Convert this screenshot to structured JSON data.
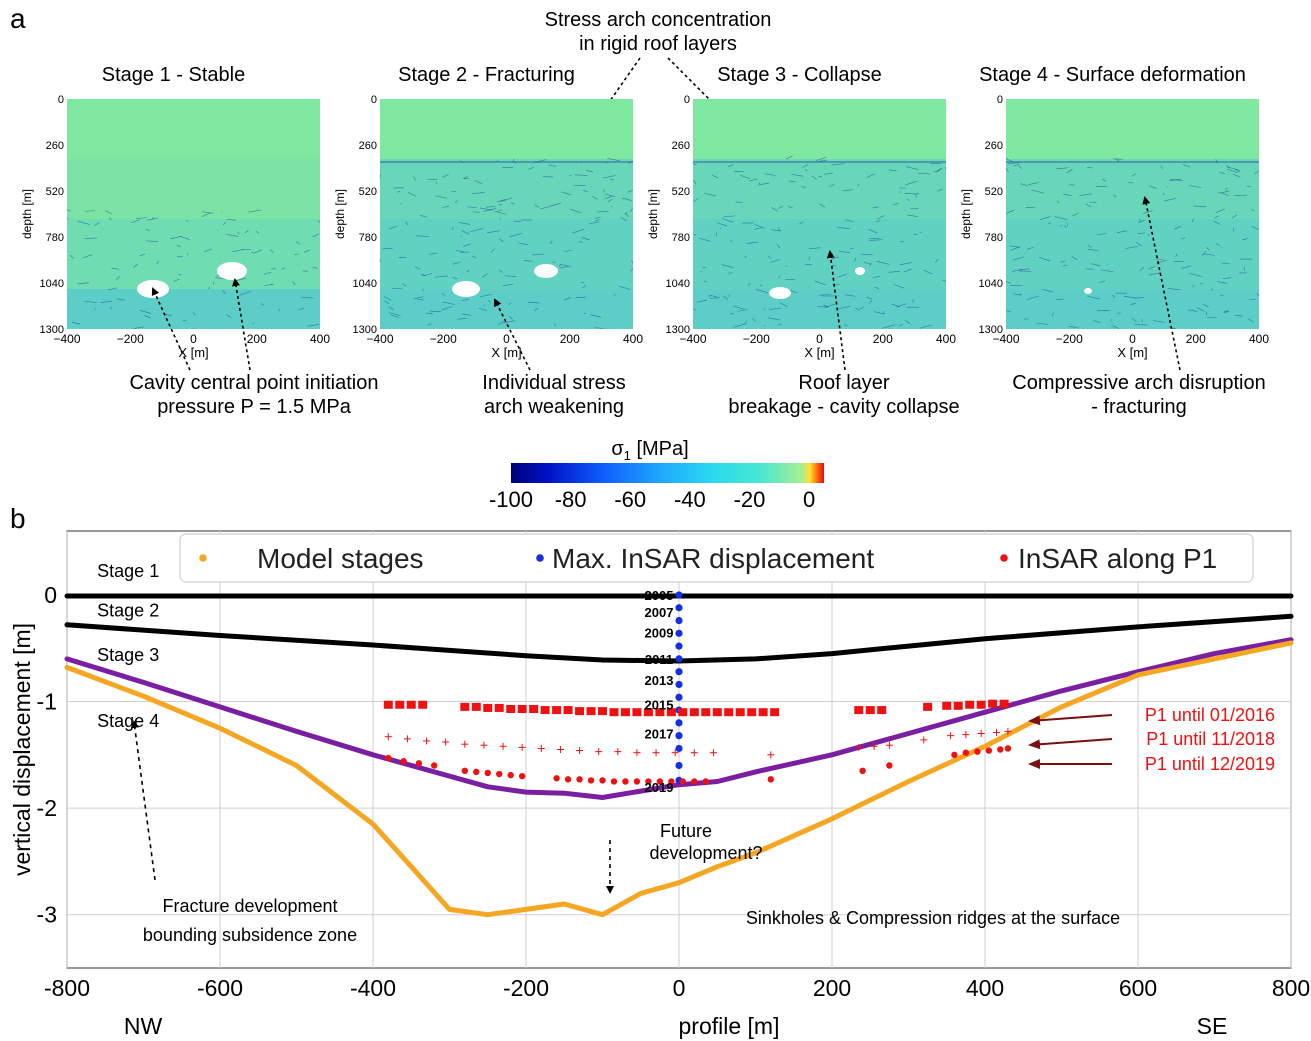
{
  "panel_a": {
    "label": "a",
    "top_annotation_line1": "Stress arch concentration",
    "top_annotation_line2": "in rigid roof layers",
    "stages": [
      {
        "title": "Stage 1 - Stable",
        "note_line1": "Cavity central point initiation",
        "note_line2": "pressure P = 1.5 MPa"
      },
      {
        "title": "Stage 2 - Fracturing",
        "note_line1": "Individual stress",
        "note_line2": "arch weakening"
      },
      {
        "title": "Stage 3 - Collapse",
        "note_line1": "Roof layer",
        "note_line2": "breakage - cavity collapse"
      },
      {
        "title": "Stage 4 - Surface deformation",
        "note_line1": "Compressive arch disruption",
        "note_line2": "- fracturing"
      }
    ],
    "ylabel": "depth [m]",
    "xlabel": "X [m]",
    "depth_ticks": [
      "0",
      "260",
      "520",
      "780",
      "1040",
      "1300"
    ],
    "x_ticks": [
      "−400",
      "−200",
      "0",
      "200",
      "400"
    ],
    "colorbar": {
      "label_main": "σ",
      "label_sub": "1",
      "label_unit": " [MPa]",
      "ticks": [
        "-100",
        "-80",
        "-60",
        "-40",
        "-20",
        "0"
      ],
      "range": [
        -100,
        5
      ]
    },
    "colors": {
      "field": "#7fe8a0",
      "dark": "#1a3a9a",
      "cavity": "#ffffff"
    }
  },
  "chart_data": {
    "type": "scatter",
    "panel_label": "b",
    "xlabel": "profile [m]",
    "ylabel": "vertical displacement  [m]",
    "xlim": [
      -800,
      800
    ],
    "ylim": [
      -3.5,
      0.6
    ],
    "x_ticks": [
      -800,
      -600,
      -400,
      -200,
      0,
      200,
      400,
      600,
      800
    ],
    "y_ticks": [
      0,
      -1,
      -2,
      -3
    ],
    "grid": true,
    "legend_position": "top",
    "side_labels": {
      "left": "NW",
      "right": "SE"
    },
    "legend": [
      {
        "label": "Model stages",
        "color": "#f5a623"
      },
      {
        "label": "Max. InSAR displacement",
        "color": "#1530e0"
      },
      {
        "label": "InSAR along P1",
        "color": "#ee1111"
      }
    ],
    "series": [
      {
        "name": "Stage 1",
        "color": "#000000",
        "x": [
          -800,
          -600,
          -400,
          -200,
          0,
          200,
          400,
          600,
          800
        ],
        "y": [
          -0.01,
          -0.01,
          -0.01,
          -0.01,
          -0.01,
          -0.01,
          -0.01,
          -0.01,
          -0.01
        ]
      },
      {
        "name": "Stage 2",
        "color": "#000000",
        "x": [
          -800,
          -600,
          -400,
          -300,
          -200,
          -100,
          0,
          100,
          200,
          300,
          400,
          600,
          800
        ],
        "y": [
          -0.28,
          -0.38,
          -0.47,
          -0.52,
          -0.57,
          -0.61,
          -0.62,
          -0.6,
          -0.55,
          -0.48,
          -0.41,
          -0.3,
          -0.2
        ]
      },
      {
        "name": "Stage 3",
        "color": "#7b1fa2",
        "x": [
          -800,
          -700,
          -600,
          -500,
          -400,
          -300,
          -250,
          -200,
          -150,
          -100,
          -50,
          0,
          50,
          100,
          200,
          300,
          400,
          500,
          600,
          700,
          800
        ],
        "y": [
          -0.6,
          -0.82,
          -1.05,
          -1.28,
          -1.5,
          -1.7,
          -1.8,
          -1.85,
          -1.86,
          -1.9,
          -1.84,
          -1.78,
          -1.75,
          -1.66,
          -1.5,
          -1.3,
          -1.1,
          -0.9,
          -0.72,
          -0.55,
          -0.42
        ]
      },
      {
        "name": "Stage 4",
        "color": "#f5a623",
        "x": [
          -800,
          -700,
          -600,
          -500,
          -400,
          -350,
          -300,
          -250,
          -200,
          -150,
          -100,
          -50,
          0,
          50,
          100,
          200,
          300,
          400,
          500,
          600,
          700,
          800
        ],
        "y": [
          -0.68,
          -0.95,
          -1.25,
          -1.6,
          -2.15,
          -2.55,
          -2.95,
          -3.0,
          -2.95,
          -2.9,
          -3.0,
          -2.8,
          -2.7,
          -2.55,
          -2.42,
          -2.1,
          -1.75,
          -1.42,
          -1.05,
          -0.75,
          -0.6,
          -0.45
        ]
      },
      {
        "name": "Max. InSAR displacement",
        "color": "#1530e0",
        "x": [
          0,
          0,
          0,
          0,
          0,
          0,
          0,
          0,
          0,
          0,
          0,
          0,
          0,
          0,
          0
        ],
        "y": [
          0,
          -0.12,
          -0.24,
          -0.36,
          -0.48,
          -0.6,
          -0.72,
          -0.84,
          -0.96,
          -1.08,
          -1.2,
          -1.32,
          -1.44,
          -1.6,
          -1.74
        ]
      },
      {
        "name": "P1 until 01/2016",
        "color": "#ee1111",
        "marker": "square",
        "x": [
          -380,
          -365,
          -350,
          -335,
          -280,
          -265,
          -250,
          -235,
          -220,
          -205,
          -190,
          -175,
          -160,
          -145,
          -130,
          -115,
          -100,
          -85,
          -70,
          -55,
          -40,
          -25,
          -10,
          5,
          20,
          35,
          50,
          65,
          80,
          95,
          110,
          125,
          235,
          250,
          265,
          325,
          350,
          365,
          380,
          395,
          410,
          425
        ],
        "y": [
          -1.03,
          -1.03,
          -1.03,
          -1.03,
          -1.05,
          -1.05,
          -1.06,
          -1.06,
          -1.07,
          -1.07,
          -1.07,
          -1.08,
          -1.08,
          -1.08,
          -1.09,
          -1.09,
          -1.09,
          -1.1,
          -1.1,
          -1.1,
          -1.1,
          -1.1,
          -1.1,
          -1.1,
          -1.1,
          -1.1,
          -1.1,
          -1.1,
          -1.1,
          -1.1,
          -1.1,
          -1.1,
          -1.08,
          -1.08,
          -1.08,
          -1.05,
          -1.04,
          -1.04,
          -1.03,
          -1.03,
          -1.02,
          -1.02
        ],
        "annotation": "P1 until 01/2016"
      },
      {
        "name": "P1 until 11/2018",
        "color": "#ee1111",
        "marker": "plus",
        "x": [
          -380,
          -355,
          -330,
          -305,
          -280,
          -255,
          -230,
          -205,
          -180,
          -155,
          -130,
          -105,
          -80,
          -55,
          -30,
          -5,
          20,
          45,
          120,
          235,
          255,
          275,
          320,
          355,
          375,
          395,
          415,
          430
        ],
        "y": [
          -1.33,
          -1.35,
          -1.37,
          -1.38,
          -1.4,
          -1.41,
          -1.42,
          -1.43,
          -1.44,
          -1.45,
          -1.46,
          -1.47,
          -1.47,
          -1.48,
          -1.48,
          -1.48,
          -1.48,
          -1.48,
          -1.5,
          -1.43,
          -1.42,
          -1.41,
          -1.36,
          -1.32,
          -1.31,
          -1.3,
          -1.29,
          -1.28
        ],
        "annotation": "P1 until 11/2018"
      },
      {
        "name": "P1 until 12/2019",
        "color": "#ee1111",
        "marker": "circle",
        "x": [
          -380,
          -360,
          -340,
          -320,
          -280,
          -265,
          -250,
          -235,
          -220,
          -205,
          -160,
          -145,
          -130,
          -115,
          -100,
          -85,
          -70,
          -55,
          -40,
          -25,
          -10,
          5,
          20,
          35,
          120,
          240,
          275,
          360,
          375,
          390,
          405,
          420,
          430
        ],
        "y": [
          -1.53,
          -1.56,
          -1.58,
          -1.6,
          -1.65,
          -1.66,
          -1.67,
          -1.68,
          -1.69,
          -1.7,
          -1.72,
          -1.73,
          -1.73,
          -1.74,
          -1.74,
          -1.75,
          -1.75,
          -1.75,
          -1.75,
          -1.75,
          -1.75,
          -1.75,
          -1.75,
          -1.75,
          -1.73,
          -1.65,
          -1.6,
          -1.5,
          -1.48,
          -1.47,
          -1.46,
          -1.45,
          -1.44
        ],
        "annotation": "P1 until 12/2019"
      }
    ],
    "year_labels": [
      {
        "text": "2005",
        "y": 0
      },
      {
        "text": "2007",
        "y": -0.16
      },
      {
        "text": "2009",
        "y": -0.35
      },
      {
        "text": "2011",
        "y": -0.6
      },
      {
        "text": "2013",
        "y": -0.8
      },
      {
        "text": "2015",
        "y": -1.03
      },
      {
        "text": "2017",
        "y": -1.3
      },
      {
        "text": "2019",
        "y": -1.8
      }
    ],
    "stage_labels": [
      {
        "text": "Stage 1",
        "x": -720,
        "y": 0.17
      },
      {
        "text": "Stage 2",
        "x": -720,
        "y": -0.2
      },
      {
        "text": "Stage 3",
        "x": -720,
        "y": -0.62
      },
      {
        "text": "Stage 4",
        "x": -720,
        "y": -1.24
      }
    ],
    "annotations": [
      {
        "text": "Future",
        "x": 0,
        "y": -2.05
      },
      {
        "text": "development?",
        "x": 0,
        "y": -2.3
      },
      {
        "text": "Fracture development",
        "x": -560,
        "y": -2.92
      },
      {
        "text": "bounding subsidence zone",
        "x": -560,
        "y": -3.17
      },
      {
        "text": "Sinkholes & Compression ridges at the surface",
        "x": 310,
        "y": -3.04
      }
    ]
  }
}
